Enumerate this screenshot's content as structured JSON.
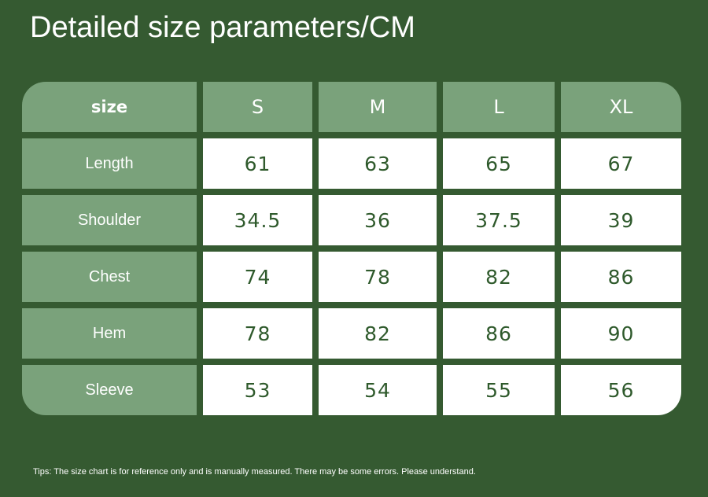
{
  "title": "Detailed size parameters/CM",
  "table": {
    "header": [
      "size",
      "S",
      "M",
      "L",
      "XL"
    ],
    "rows": [
      [
        "Length",
        61,
        63,
        65,
        67
      ],
      [
        "Shoulder",
        34.5,
        36,
        37.5,
        39
      ],
      [
        "Chest",
        74,
        78,
        82,
        86
      ],
      [
        "Hem",
        78,
        82,
        86,
        90
      ],
      [
        "Sleeve",
        53,
        54,
        55,
        56
      ]
    ]
  },
  "tips": "Tips: The size chart is for reference only and is manually measured. There may be some errors. Please understand."
}
